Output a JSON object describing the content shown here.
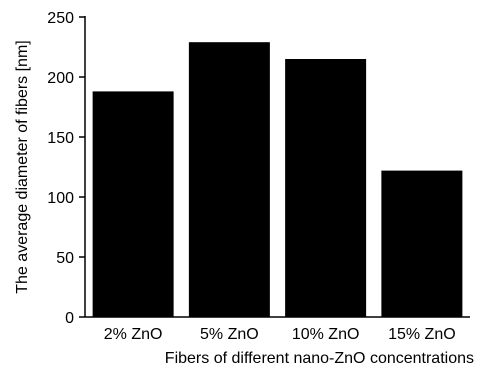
{
  "chart_data": {
    "type": "bar",
    "categories": [
      "2% ZnO",
      "5% ZnO",
      "10% ZnO",
      "15% ZnO"
    ],
    "values": [
      188,
      229,
      215,
      122
    ],
    "title": "",
    "xlabel": "Fibers of different nano-ZnO concentrations",
    "ylabel": "The average diameter of fibers [nm]",
    "ylim": [
      0,
      250
    ],
    "yticks": [
      0,
      50,
      100,
      150,
      200,
      250
    ],
    "grid": false,
    "bar_color": "#000000"
  }
}
